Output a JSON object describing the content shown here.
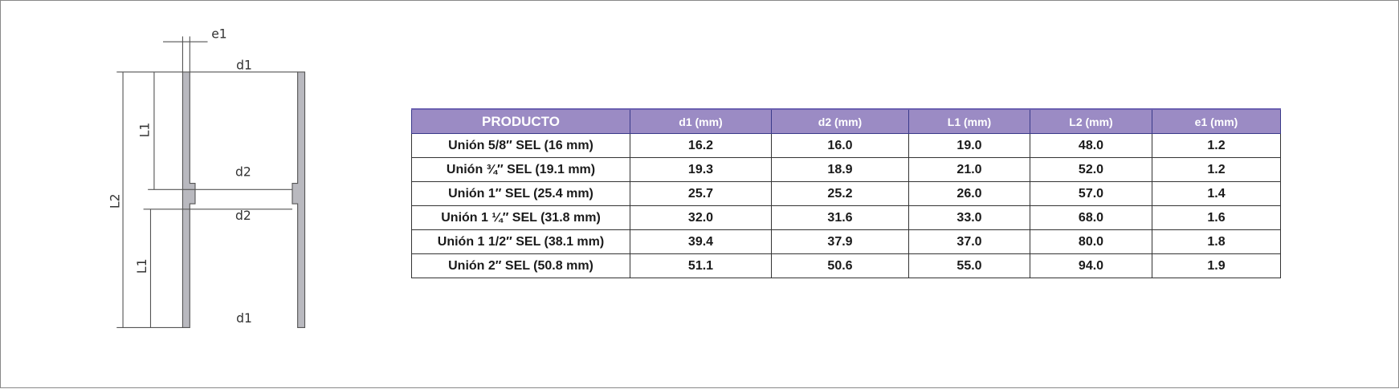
{
  "diagram": {
    "labels": [
      "e1",
      "d1",
      "L1",
      "L2",
      "d2",
      "d2",
      "L1",
      "d1"
    ]
  },
  "table": {
    "header": [
      "PRODUCTO",
      "d1 (mm)",
      "d2 (mm)",
      "L1 (mm)",
      "L2 (mm)",
      "e1 (mm)"
    ],
    "rows": [
      [
        "Unión 5/8″ SEL (16 mm)",
        "16.2",
        "16.0",
        "19.0",
        "48.0",
        "1.2"
      ],
      [
        "Unión  ¾″ SEL (19.1 mm)",
        "19.3",
        "18.9",
        "21.0",
        "52.0",
        "1.2"
      ],
      [
        "Unión  1″ SEL (25.4 mm)",
        "25.7",
        "25.2",
        "26.0",
        "57.0",
        "1.4"
      ],
      [
        "Unión  1 ¼″ SEL (31.8 mm)",
        "32.0",
        "31.6",
        "33.0",
        "68.0",
        "1.6"
      ],
      [
        "Unión  1 1/2″ SEL (38.1 mm)",
        "39.4",
        "37.9",
        "37.0",
        "80.0",
        "1.8"
      ],
      [
        "Unión  2″ SEL (50.8 mm)",
        "51.1",
        "50.6",
        "55.0",
        "94.0",
        "1.9"
      ]
    ]
  }
}
